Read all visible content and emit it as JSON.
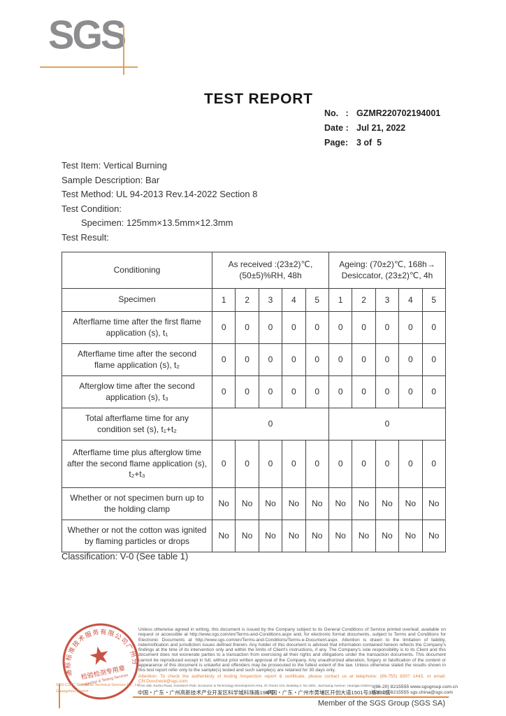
{
  "logo": {
    "text": "SGS",
    "gray": "#8d8d90",
    "accent": "#dfa05c"
  },
  "header": {
    "title": "TEST REPORT",
    "meta": [
      {
        "label": "No.   :",
        "value": "GZMR220702194001"
      },
      {
        "label": "Date :",
        "value": "Jul 21, 2022"
      },
      {
        "label": "Page:",
        "value": "3 of  5"
      }
    ]
  },
  "info": {
    "lines": [
      "Test Item: Vertical Burning",
      "Sample Description: Bar",
      "Test Method: UL 94-2013 Rev.14-2022 Section 8",
      "Test Condition:",
      "Specimen: 125mm×13.5mm×12.3mm",
      "Test Result:"
    ]
  },
  "table": {
    "header": {
      "conditioning": "Conditioning",
      "groups": [
        {
          "line1": "As received :(23±2)℃,",
          "line2": "(50±5)%RH, 48h"
        },
        {
          "line1": "Ageing: (70±2)℃, 168h→",
          "line2": "Desiccator, (23±2)℃, 4h"
        }
      ],
      "specimen": "Specimen",
      "specimen_cols": [
        "1",
        "2",
        "3",
        "4",
        "5",
        "1",
        "2",
        "3",
        "4",
        "5"
      ]
    },
    "rows": [
      {
        "label": [
          "Afterflame time after the first flame",
          "application (s), t₁"
        ],
        "cells": [
          "0",
          "0",
          "0",
          "0",
          "0",
          "0",
          "0",
          "0",
          "0",
          "0"
        ]
      },
      {
        "label": [
          "Afterflame time after the second",
          "flame application (s), t₂"
        ],
        "cells": [
          "0",
          "0",
          "0",
          "0",
          "0",
          "0",
          "0",
          "0",
          "0",
          "0"
        ]
      },
      {
        "label": [
          "Afterglow time after the second",
          "application (s), t₃"
        ],
        "cells": [
          "0",
          "0",
          "0",
          "0",
          "0",
          "0",
          "0",
          "0",
          "0",
          "0"
        ]
      },
      {
        "label": [
          "Total afterflame time for any",
          "condition set (s), t₁+t₂"
        ],
        "merged": [
          "0",
          "0"
        ]
      },
      {
        "label": [
          "Afterflame time plus afterglow time",
          "after the second flame application (s),",
          "t₂+t₃"
        ],
        "cells": [
          "0",
          "0",
          "0",
          "0",
          "0",
          "0",
          "0",
          "0",
          "0",
          "0"
        ]
      },
      {
        "label": [
          "Whether or not specimen burn up to",
          "the holding clamp"
        ],
        "cells": [
          "No",
          "No",
          "No",
          "No",
          "No",
          "No",
          "No",
          "No",
          "No",
          "No"
        ]
      },
      {
        "label": [
          "Whether or not the cotton was ignited",
          "by flaming particles or drops"
        ],
        "cells": [
          "No",
          "No",
          "No",
          "No",
          "No",
          "No",
          "No",
          "No",
          "No",
          "No"
        ]
      }
    ]
  },
  "classification": "Classification: V-0 (See table 1)",
  "stamp": {
    "ring_text": "通标标准技术服务有限公司广州分公司",
    "star": "★",
    "line1": "检验检测专用章",
    "line2": "Inspection & Testing Services",
    "color": "#c03b2a"
  },
  "footer": {
    "legal": "Unless otherwise agreed in writing, this document is issued by the Company subject to its General Conditions of Service printed overleaf, available on request or accessible at http://www.sgs.com/en/Terms-and-Conditions.aspx and, for electronic format documents, subject to Terms and Conditions for Electronic Documents at http://www.sgs.com/en/Terms-and-Conditions/Terms-e-Document.aspx. Attention is drawn to the limitation of liability, indemnification and jurisdiction issues defined therein. Any holder of this document is advised that information contained hereon reflects the Company's findings at the time of its intervention only and within the limits of Client's instructions, if any. The Company's sole responsibility is to its Client and this document does not exonerate parties to a transaction from exercising all their rights and obligations under the transaction documents. This document cannot be reproduced except in full, without prior written approval of the Company. Any unauthorized alteration, forgery or falsification of the content or appearance of this document is unlawful and offenders may be prosecuted to the fullest extent of the law. Unless otherwise stated the results shown in this test report refer only to the sample(s) tested and such sample(s) are retained for 30 days only.",
    "attention": "Attention: To check the authenticity of testing /inspection report & certificate, please contact us at telephone: (86-755) 8307 1443, or email: CN.Doccheck@sgs.com",
    "company_line1": "SGS-CSTC Standards Technical Services Co., Ltd.",
    "company_line2": "Guangzhou Branch",
    "addresses": [
      {
        "en": "□ No.198, Kezhu Road, Scientech Park, Economic & Technology Development Area, Guangzhou, Guangdong, China",
        "cn": "中国・广东・广州高新技术产业开发区科学城科珠路198号"
      },
      {
        "en": "□ Room 101, Building 3, No.1501, Jiachuang Avenue, Huangpu District, Guangzhou, China",
        "cn": "中国・广东・广州市黄埔区开创大道1501号3栋101房"
      }
    ],
    "contacts": [
      "t(86-20) 8215555   www.sgsgroup.com.cn",
      "t(86-20) 8215555   sgs.china@sgs.com"
    ],
    "member": "Member of the SGS Group (SGS SA)"
  }
}
